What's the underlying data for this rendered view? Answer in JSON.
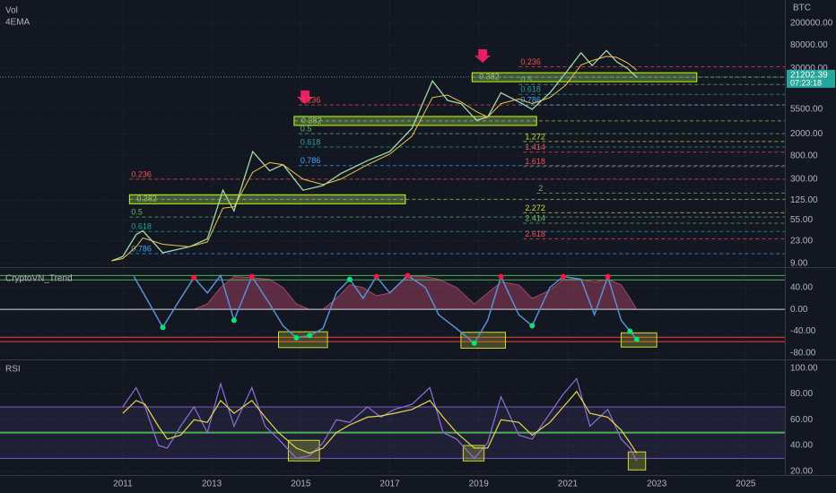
{
  "chart_data": [
    {
      "type": "line",
      "log_scale": true,
      "volume_label": "Vol",
      "currency": "BTC",
      "xlim": [
        2008.24,
        2025.88
      ],
      "ylim": [
        8,
        486000
      ],
      "yticks": [
        {
          "value": 200000,
          "label": "200000.00"
        },
        {
          "value": 80000,
          "label": "80000.00"
        },
        {
          "value": 30000,
          "label": "30000.00"
        },
        {
          "value": 5500,
          "label": "5500.00"
        },
        {
          "value": 2000,
          "label": "2000.00"
        },
        {
          "value": 800,
          "label": "800.00"
        },
        {
          "value": 300,
          "label": "300.00"
        },
        {
          "value": 125,
          "label": "125.00"
        },
        {
          "value": 55,
          "label": "55.00"
        },
        {
          "value": 23,
          "label": "23.00"
        },
        {
          "value": 9,
          "label": "9.00"
        }
      ],
      "x": [
        2010.75,
        2011.0,
        2011.3,
        2011.45,
        2011.9,
        2012.5,
        2012.9,
        2013.25,
        2013.5,
        2013.92,
        2014.3,
        2014.6,
        2015.05,
        2015.5,
        2015.9,
        2016.5,
        2017.0,
        2017.5,
        2017.96,
        2018.3,
        2018.6,
        2018.95,
        2019.2,
        2019.5,
        2019.9,
        2020.2,
        2020.6,
        2020.95,
        2021.3,
        2021.55,
        2021.87,
        2022.1,
        2022.35,
        2022.55
      ],
      "series": [
        {
          "color": "#a5d6a7",
          "values": [
            10,
            12,
            30,
            35,
            14,
            18,
            25,
            190,
            80,
            950,
            425,
            550,
            190,
            230,
            380,
            650,
            950,
            2500,
            18000,
            8000,
            7000,
            3500,
            4000,
            11000,
            7500,
            5500,
            11000,
            25000,
            58000,
            34000,
            64000,
            40000,
            30000,
            21000
          ]
        },
        {
          "name": "4EMA",
          "color": "#e6c84a",
          "values": [
            10,
            11,
            18,
            26,
            20,
            18,
            22,
            90,
            95,
            400,
            600,
            550,
            300,
            240,
            300,
            550,
            850,
            1800,
            9000,
            10000,
            7500,
            5000,
            4000,
            7000,
            8500,
            7000,
            9000,
            15000,
            35000,
            42000,
            50000,
            48000,
            38000,
            28000
          ]
        }
      ],
      "fib_levels": [
        {
          "label": "0.236",
          "value": 300,
          "x": 2011.15,
          "color": "#ef5350"
        },
        {
          "label": "0.382",
          "value": 130,
          "x": 2011.15,
          "x_end": 2017.35,
          "color": "#9ccc65"
        },
        {
          "label": "0.5",
          "value": 62,
          "x": 2011.15,
          "color": "#66bb6a"
        },
        {
          "label": "0.618",
          "value": 34,
          "x": 2011.15,
          "color": "#26a69a"
        },
        {
          "label": "0.786",
          "value": 13.5,
          "x": 2011.15,
          "color": "#42a5f5"
        },
        {
          "label": "0.236",
          "value": 6600,
          "x": 2014.95,
          "color": "#ef5350"
        },
        {
          "label": "0.382",
          "value": 3400,
          "x": 2014.85,
          "x_end": 2020.3,
          "color": "#9ccc65"
        },
        {
          "label": "0.5",
          "value": 2000,
          "x": 2014.95,
          "color": "#66bb6a"
        },
        {
          "label": "0.618",
          "value": 1150,
          "x": 2014.95,
          "color": "#26a69a"
        },
        {
          "label": "0.786",
          "value": 530,
          "x": 2014.95,
          "color": "#42a5f5"
        },
        {
          "label": "1.272",
          "value": 1440,
          "x": 2020.0,
          "color": "#cddc39"
        },
        {
          "label": "1.414",
          "value": 925,
          "x": 2020.0,
          "color": "#ef5350"
        },
        {
          "label": "1.618",
          "value": 510,
          "x": 2020.0,
          "color": "#ef5350"
        },
        {
          "label": "2",
          "value": 168,
          "x": 2020.3,
          "color": "#66bb6a"
        },
        {
          "label": "2.272",
          "value": 74,
          "x": 2020.0,
          "color": "#cddc39"
        },
        {
          "label": "2.414",
          "value": 48,
          "x": 2020.0,
          "color": "#66bb6a"
        },
        {
          "label": "2.618",
          "value": 25,
          "x": 2020.0,
          "color": "#ef5350"
        },
        {
          "label": "0.236",
          "value": 32500,
          "x": 2019.9,
          "color": "#ef5350"
        },
        {
          "label": "0.382",
          "value": 21000,
          "x": 2018.85,
          "x_end": 2023.9,
          "color": "#9ccc65"
        },
        {
          "label": "0.5",
          "value": 15500,
          "x": 2019.9,
          "color": "#66bb6a"
        },
        {
          "label": "0.618",
          "value": 10300,
          "x": 2019.9,
          "color": "#26a69a"
        },
        {
          "label": "0.786",
          "value": 6600,
          "x": 2019.9,
          "color": "#42a5f5"
        }
      ],
      "last_price": 21202.39,
      "countdown": "07:23:18"
    },
    {
      "type": "oscillator",
      "label": "CryptoVN_Trend",
      "xlim": [
        2008.24,
        2025.88
      ],
      "ylim": [
        -90,
        74
      ],
      "yticks": [
        {
          "value": 40,
          "label": "40.00"
        },
        {
          "value": 0,
          "label": "0.00"
        },
        {
          "value": -40,
          "label": "-40.00"
        },
        {
          "value": -80,
          "label": "-80.00"
        }
      ],
      "x": [
        2011.25,
        2011.6,
        2011.9,
        2012.3,
        2012.6,
        2012.9,
        2013.2,
        2013.5,
        2013.9,
        2014.3,
        2014.6,
        2014.9,
        2015.2,
        2015.5,
        2015.8,
        2016.1,
        2016.4,
        2016.7,
        2017.0,
        2017.4,
        2017.8,
        2018.1,
        2018.5,
        2018.9,
        2019.2,
        2019.5,
        2019.9,
        2020.2,
        2020.6,
        2020.9,
        2021.3,
        2021.6,
        2021.9,
        2022.2,
        2022.4,
        2022.55
      ],
      "series": [
        {
          "color": "#5b8fd5",
          "values": [
            60,
            10,
            -33,
            20,
            58,
            30,
            62,
            -20,
            60,
            10,
            -30,
            -52,
            -48,
            -35,
            30,
            55,
            20,
            60,
            30,
            62,
            40,
            -10,
            -35,
            -62,
            -20,
            60,
            -10,
            -30,
            40,
            60,
            55,
            -10,
            60,
            -20,
            -40,
            -55
          ]
        }
      ],
      "area": {
        "color": "#8e3a5a",
        "values": [
          0,
          0,
          0,
          0,
          0,
          10,
          40,
          60,
          58,
          55,
          40,
          10,
          0,
          0,
          20,
          45,
          40,
          25,
          30,
          60,
          60,
          55,
          40,
          10,
          30,
          50,
          45,
          20,
          35,
          55,
          55,
          50,
          55,
          45,
          20,
          0
        ]
      },
      "levels": [
        {
          "value": 62,
          "color": "#4caf50"
        },
        {
          "value": 54,
          "color": "#4caf50"
        },
        {
          "value": 0,
          "color": "#d1d4dc"
        },
        {
          "value": -51,
          "color": "#f44336"
        },
        {
          "value": -59,
          "color": "#f44336"
        }
      ],
      "markers": [
        {
          "color": "#00e676",
          "x": [
            2011.9,
            2013.5,
            2014.9,
            2015.2,
            2016.1,
            2018.9,
            2020.2,
            2022.4,
            2022.55
          ],
          "values": [
            -33,
            -20,
            -52,
            -48,
            55,
            -62,
            -30,
            -40,
            -55
          ]
        },
        {
          "color": "#ff1744",
          "x": [
            2012.6,
            2013.9,
            2016.7,
            2017.4,
            2019.5,
            2020.9,
            2021.9
          ],
          "values": [
            58,
            60,
            60,
            62,
            60,
            60,
            60
          ]
        }
      ],
      "zones": [
        {
          "x": [
            2014.5,
            2015.6
          ],
          "y": [
            -70,
            -41
          ]
        },
        {
          "x": [
            2018.6,
            2019.6
          ],
          "y": [
            -71,
            -42
          ]
        },
        {
          "x": [
            2022.2,
            2023.0
          ],
          "y": [
            -69,
            -43
          ]
        }
      ]
    },
    {
      "type": "rsi",
      "label": "RSI",
      "xlim": [
        2008.24,
        2025.88
      ],
      "ylim": [
        17,
        105.5
      ],
      "xticks": [
        2011,
        2013,
        2015,
        2017,
        2019,
        2021,
        2023,
        2025
      ],
      "yticks": [
        {
          "value": 100,
          "label": "100.00"
        },
        {
          "value": 80,
          "label": "80.00"
        },
        {
          "value": 60,
          "label": "60.00"
        },
        {
          "value": 40,
          "label": "40.00"
        },
        {
          "value": 20,
          "label": "20.00"
        }
      ],
      "band": [
        30,
        70
      ],
      "levels": [
        {
          "value": 70,
          "color": "#7e57c2"
        },
        {
          "value": 30,
          "color": "#7e57c2"
        },
        {
          "value": 50,
          "color": "#4caf50"
        }
      ],
      "x": [
        2011.0,
        2011.3,
        2011.5,
        2011.8,
        2012.0,
        2012.3,
        2012.6,
        2012.9,
        2013.2,
        2013.5,
        2013.9,
        2014.2,
        2014.5,
        2014.9,
        2015.2,
        2015.5,
        2015.8,
        2016.1,
        2016.5,
        2016.8,
        2017.1,
        2017.5,
        2017.9,
        2018.2,
        2018.5,
        2018.9,
        2019.2,
        2019.5,
        2019.9,
        2020.2,
        2020.6,
        2020.9,
        2021.2,
        2021.5,
        2021.9,
        2022.2,
        2022.4,
        2022.55
      ],
      "series": [
        {
          "color": "#8c6fd6",
          "values": [
            70,
            85,
            70,
            40,
            38,
            55,
            70,
            50,
            88,
            55,
            85,
            55,
            45,
            30,
            32,
            42,
            60,
            58,
            70,
            62,
            68,
            72,
            85,
            50,
            45,
            30,
            42,
            78,
            48,
            45,
            65,
            80,
            92,
            55,
            68,
            45,
            38,
            28
          ]
        },
        {
          "color": "#e6d64a",
          "values": [
            65,
            75,
            72,
            55,
            45,
            48,
            60,
            58,
            75,
            65,
            75,
            62,
            50,
            38,
            34,
            38,
            50,
            56,
            62,
            63,
            65,
            68,
            75,
            62,
            50,
            38,
            38,
            60,
            58,
            48,
            58,
            70,
            82,
            65,
            62,
            52,
            42,
            34
          ]
        }
      ],
      "zones": [
        {
          "x": [
            2014.72,
            2015.42
          ],
          "y": [
            28,
            44
          ]
        },
        {
          "x": [
            2018.65,
            2019.12
          ],
          "y": [
            28,
            40
          ]
        },
        {
          "x": [
            2022.36,
            2022.75
          ],
          "y": [
            21,
            35
          ]
        }
      ]
    }
  ]
}
